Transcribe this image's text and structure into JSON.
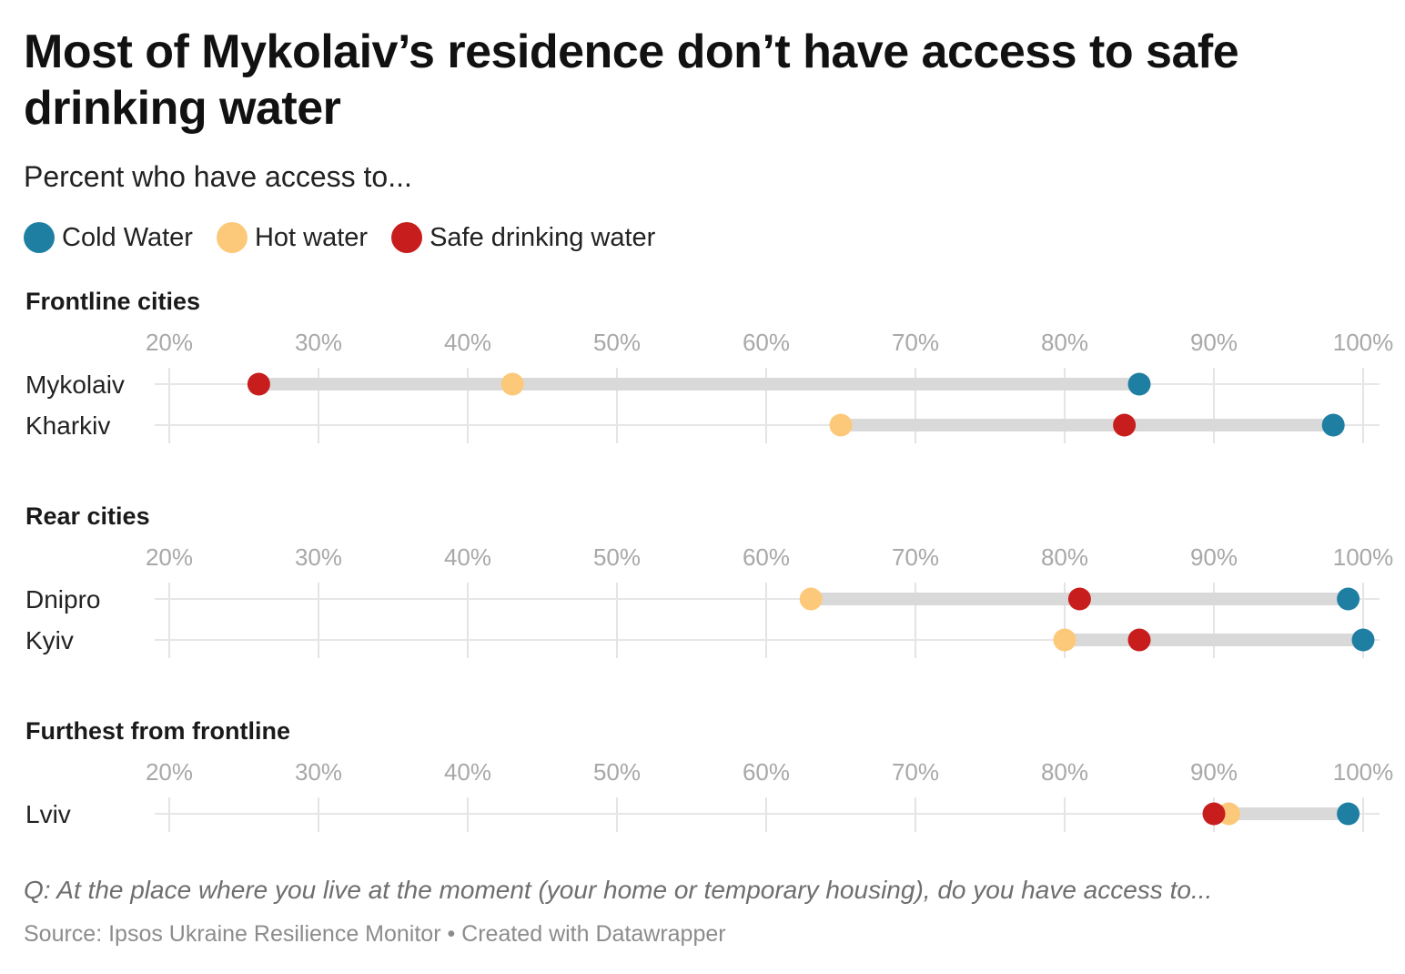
{
  "header": {
    "title": "Most of Mykolaiv’s residence don’t have access to safe drinking water",
    "subtitle": "Percent who have access to..."
  },
  "legend": [
    {
      "label": "Cold Water",
      "color": "#1f7fa3"
    },
    {
      "label": "Hot water",
      "color": "#fcc97a"
    },
    {
      "label": "Safe drinking water",
      "color": "#c71e1d"
    }
  ],
  "footer": {
    "question": "Q: At the place where you live at the moment (your home or temporary housing), do you have access to...",
    "source": "Source: Ipsos Ukraine Resilience Monitor • Created with Datawrapper"
  },
  "chart_data": {
    "type": "range-dot",
    "title": "Most of Mykolaiv’s residence don’t have access to safe drinking water",
    "subtitle": "Percent who have access to...",
    "xlim": [
      20,
      100
    ],
    "ticks": [
      "20%",
      "30%",
      "40%",
      "50%",
      "60%",
      "70%",
      "80%",
      "90%",
      "100%"
    ],
    "tick_values": [
      20,
      30,
      40,
      50,
      60,
      70,
      80,
      90,
      100
    ],
    "series": [
      {
        "key": "cold",
        "name": "Cold Water",
        "color": "#1f7fa3"
      },
      {
        "key": "hot",
        "name": "Hot water",
        "color": "#fcc97a"
      },
      {
        "key": "safe",
        "name": "Safe drinking water",
        "color": "#c71e1d"
      }
    ],
    "groups": [
      {
        "title": "Frontline cities",
        "rows": [
          {
            "label": "Mykolaiv",
            "cold": 85,
            "hot": 43,
            "safe": 26
          },
          {
            "label": "Kharkiv",
            "cold": 98,
            "hot": 65,
            "safe": 84
          }
        ]
      },
      {
        "title": "Rear cities",
        "rows": [
          {
            "label": "Dnipro",
            "cold": 99,
            "hot": 63,
            "safe": 81
          },
          {
            "label": "Kyiv",
            "cold": 100,
            "hot": 80,
            "safe": 85
          }
        ]
      },
      {
        "title": "Furthest from frontline",
        "rows": [
          {
            "label": "Lviv",
            "cold": 99,
            "hot": 91,
            "safe": 90
          }
        ]
      }
    ]
  }
}
